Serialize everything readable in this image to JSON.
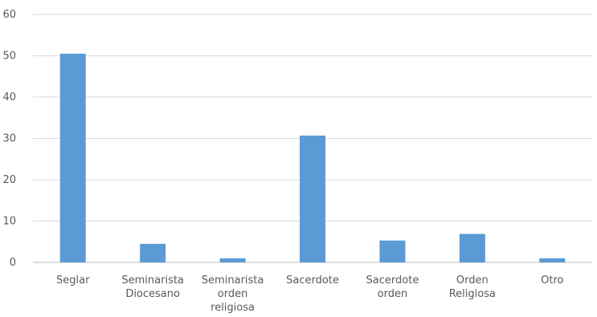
{
  "chart_data": {
    "type": "bar",
    "categories": [
      [
        "Seglar"
      ],
      [
        "Seminarista",
        "Diocesano"
      ],
      [
        "Seminarista",
        "orden",
        "religiosa"
      ],
      [
        "Sacerdote"
      ],
      [
        "Sacerdote",
        "orden"
      ],
      [
        "Orden",
        "Religiosa"
      ],
      [
        "Otro"
      ]
    ],
    "values": [
      50.5,
      4.5,
      1.0,
      30.7,
      5.3,
      6.9,
      1.0
    ],
    "ylim": [
      0,
      60
    ],
    "yticks": [
      0,
      10,
      20,
      30,
      40,
      50,
      60
    ],
    "grid": true,
    "bar_color": "#5b9bd5",
    "grid_color": "#d9d9d9",
    "axis_color": "#bfbfbf"
  }
}
